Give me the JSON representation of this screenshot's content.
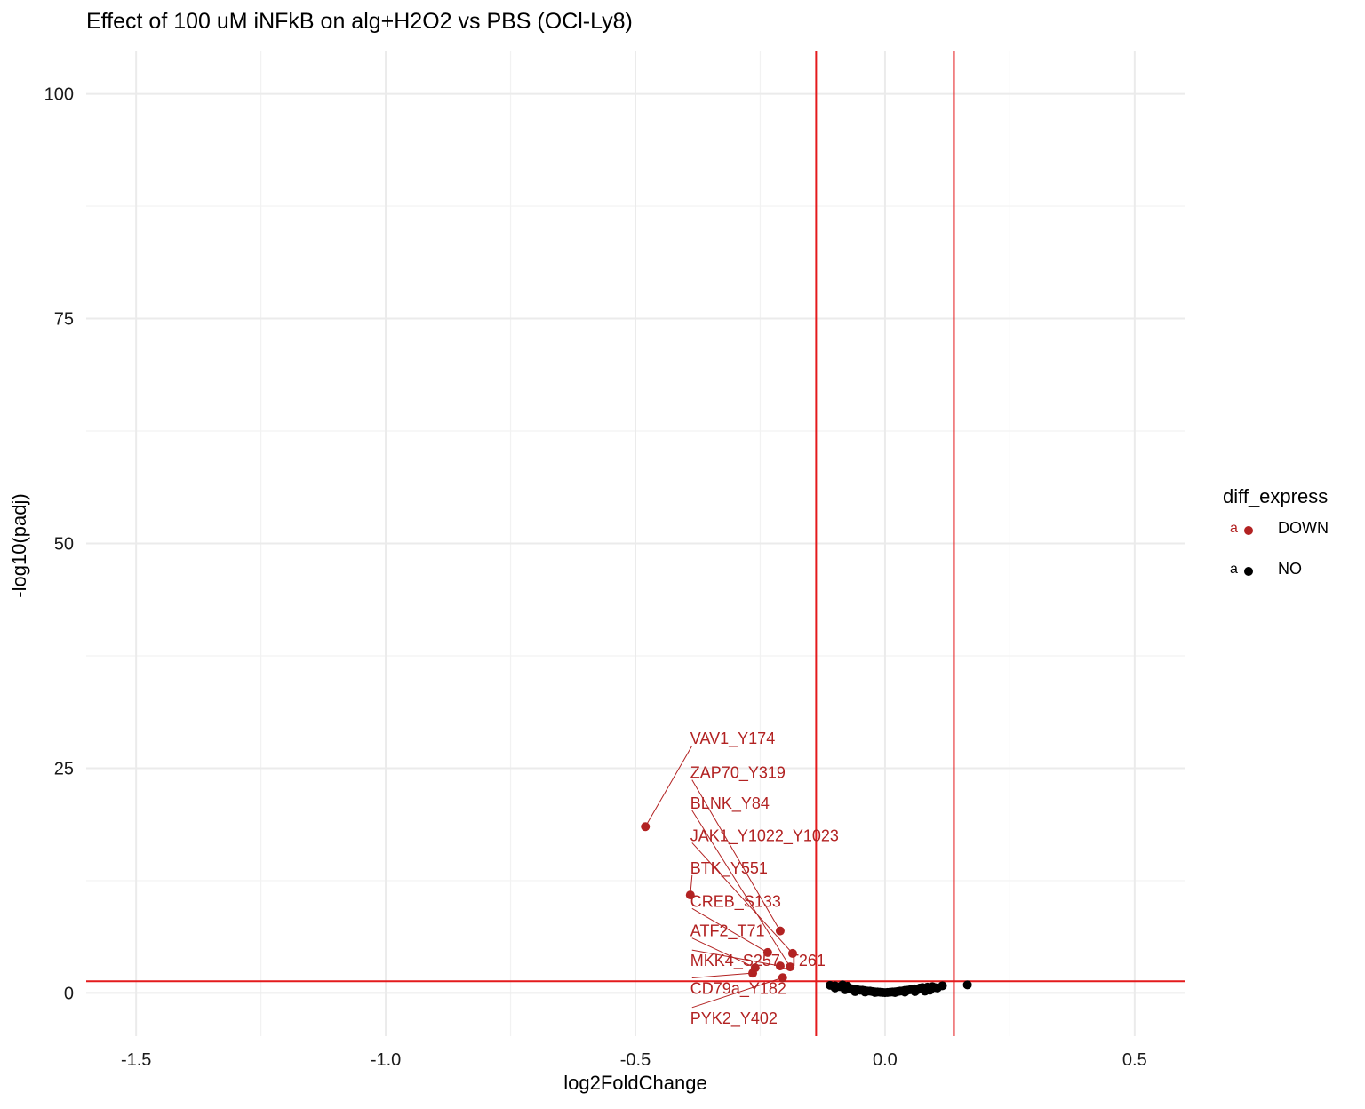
{
  "chart_data": {
    "type": "scatter",
    "title": "Effect of 100 uM iNFkB on alg+H2O2 vs PBS (OCl-Ly8)",
    "xlabel": "log2FoldChange",
    "ylabel": "-log10(padj)",
    "xlim": [
      -1.6,
      0.6
    ],
    "ylim": [
      -4.8,
      104.8
    ],
    "x_ticks": [
      -1.5,
      -1.0,
      -0.5,
      0.0,
      0.5
    ],
    "x_tick_labels": [
      "-1.5",
      "-1.0",
      "-0.5",
      "0.0",
      "0.5"
    ],
    "y_ticks": [
      0,
      25,
      50,
      75,
      100
    ],
    "y_tick_labels": [
      "0",
      "25",
      "50",
      "75",
      "100"
    ],
    "grid": true,
    "vlines": [
      -0.138,
      0.138
    ],
    "hline": 1.3,
    "threshold_color": "#e41a1c",
    "legend": {
      "title": "diff_express",
      "position": "right",
      "key_glyph": "a",
      "entries": [
        {
          "label": "DOWN",
          "color": "#b22222"
        },
        {
          "label": "NO",
          "color": "#000000"
        }
      ]
    },
    "series": [
      {
        "name": "DOWN",
        "color": "#b22222",
        "points": [
          {
            "x": -0.48,
            "y": 18.5,
            "label": "VAV1_Y174",
            "label_x": -0.39,
            "label_y": 27.7
          },
          {
            "x": -0.39,
            "y": 10.9,
            "label": "BTK_Y551",
            "label_x": -0.39,
            "label_y": 13.3
          },
          {
            "x": -0.21,
            "y": 6.9,
            "label": "ZAP70_Y319",
            "label_x": -0.39,
            "label_y": 23.9
          },
          {
            "x": -0.235,
            "y": 4.5,
            "label": "CREB_S133",
            "label_x": -0.39,
            "label_y": 9.6
          },
          {
            "x": -0.185,
            "y": 4.4,
            "label": "JAK1_Y1022_Y1023",
            "label_x": -0.39,
            "label_y": 16.9
          },
          {
            "x": -0.26,
            "y": 2.8,
            "label": "ATF2_T71",
            "label_x": -0.39,
            "label_y": 6.3
          },
          {
            "x": -0.21,
            "y": 3.0,
            "label": "MKK4_S257_T261",
            "label_x": -0.39,
            "label_y": 3.0
          },
          {
            "x": -0.19,
            "y": 2.9,
            "label": "BLNK_Y84",
            "label_x": -0.39,
            "label_y": 20.5
          },
          {
            "x": -0.265,
            "y": 2.2,
            "label": "CD79a_Y182",
            "label_x": -0.39,
            "label_y": -0.1
          },
          {
            "x": -0.205,
            "y": 1.7,
            "label": "PYK2_Y402",
            "label_x": -0.39,
            "label_y": -3.4
          }
        ]
      },
      {
        "name": "NO",
        "color": "#000000",
        "points": [
          {
            "x": -0.11,
            "y": 0.85
          },
          {
            "x": -0.1,
            "y": 0.8
          },
          {
            "x": -0.09,
            "y": 0.7
          },
          {
            "x": -0.085,
            "y": 0.9
          },
          {
            "x": -0.08,
            "y": 0.6
          },
          {
            "x": -0.075,
            "y": 0.75
          },
          {
            "x": -0.07,
            "y": 0.5
          },
          {
            "x": -0.065,
            "y": 0.45
          },
          {
            "x": -0.06,
            "y": 0.4
          },
          {
            "x": -0.055,
            "y": 0.35
          },
          {
            "x": -0.05,
            "y": 0.3
          },
          {
            "x": -0.045,
            "y": 0.3
          },
          {
            "x": -0.04,
            "y": 0.25
          },
          {
            "x": -0.035,
            "y": 0.2
          },
          {
            "x": -0.03,
            "y": 0.2
          },
          {
            "x": -0.025,
            "y": 0.15
          },
          {
            "x": -0.02,
            "y": 0.12
          },
          {
            "x": -0.015,
            "y": 0.1
          },
          {
            "x": -0.01,
            "y": 0.08
          },
          {
            "x": -0.005,
            "y": 0.05
          },
          {
            "x": 0.0,
            "y": 0.03
          },
          {
            "x": 0.005,
            "y": 0.05
          },
          {
            "x": 0.01,
            "y": 0.08
          },
          {
            "x": 0.015,
            "y": 0.1
          },
          {
            "x": 0.02,
            "y": 0.12
          },
          {
            "x": 0.025,
            "y": 0.15
          },
          {
            "x": 0.03,
            "y": 0.2
          },
          {
            "x": 0.035,
            "y": 0.22
          },
          {
            "x": 0.04,
            "y": 0.28
          },
          {
            "x": 0.045,
            "y": 0.3
          },
          {
            "x": 0.05,
            "y": 0.35
          },
          {
            "x": 0.055,
            "y": 0.4
          },
          {
            "x": 0.06,
            "y": 0.45
          },
          {
            "x": 0.065,
            "y": 0.35
          },
          {
            "x": 0.07,
            "y": 0.55
          },
          {
            "x": 0.075,
            "y": 0.6
          },
          {
            "x": 0.08,
            "y": 0.5
          },
          {
            "x": 0.085,
            "y": 0.65
          },
          {
            "x": 0.09,
            "y": 0.4
          },
          {
            "x": 0.095,
            "y": 0.7
          },
          {
            "x": 0.1,
            "y": 0.6
          },
          {
            "x": 0.105,
            "y": 0.55
          },
          {
            "x": 0.115,
            "y": 0.8
          },
          {
            "x": 0.165,
            "y": 0.9
          },
          {
            "x": -0.1,
            "y": 0.55
          },
          {
            "x": -0.08,
            "y": 0.35
          },
          {
            "x": -0.06,
            "y": 0.15
          },
          {
            "x": -0.04,
            "y": 0.1
          },
          {
            "x": -0.02,
            "y": 0.05
          },
          {
            "x": 0.02,
            "y": 0.04
          },
          {
            "x": 0.04,
            "y": 0.1
          },
          {
            "x": 0.06,
            "y": 0.15
          },
          {
            "x": 0.08,
            "y": 0.2
          },
          {
            "x": 0.09,
            "y": 0.3
          }
        ]
      }
    ]
  }
}
